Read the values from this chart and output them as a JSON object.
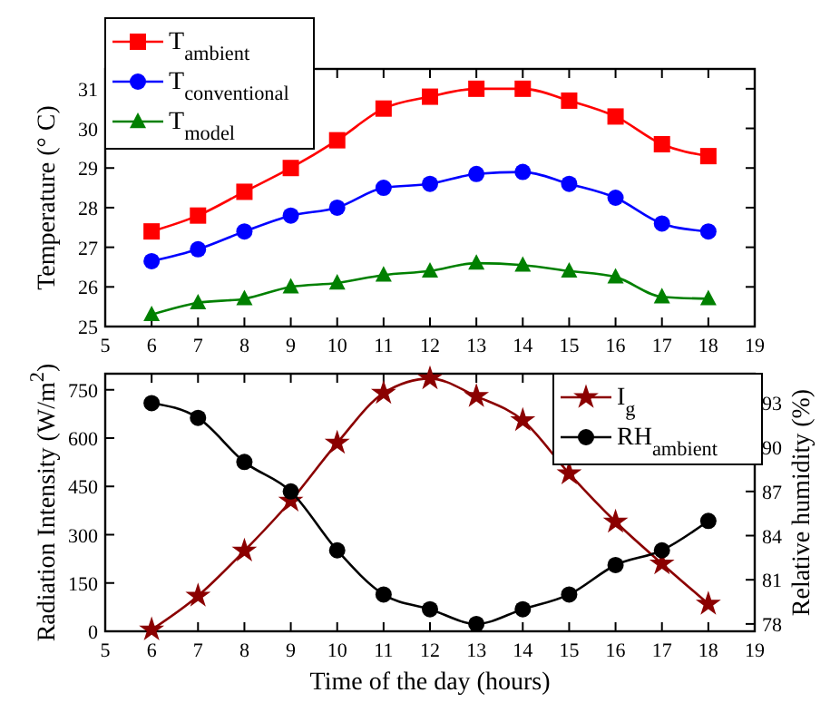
{
  "chart_data": [
    {
      "type": "line",
      "ylabel": "Temperature (° C)",
      "x": [
        6,
        7,
        8,
        9,
        10,
        11,
        12,
        13,
        14,
        15,
        16,
        17,
        18
      ],
      "xlim": [
        5,
        19
      ],
      "xticks": [
        5,
        6,
        7,
        8,
        9,
        10,
        11,
        12,
        13,
        14,
        15,
        16,
        17,
        18,
        19
      ],
      "ylim": [
        25,
        31.5
      ],
      "yticks": [
        25,
        26,
        27,
        28,
        29,
        30,
        31
      ],
      "legend": "top left",
      "grid": false,
      "series": [
        {
          "name": "T$_{ambient}$",
          "color": "#ff0000",
          "marker": "square",
          "values": [
            27.4,
            27.8,
            28.4,
            29.0,
            29.7,
            30.5,
            30.8,
            31.0,
            31.0,
            30.7,
            30.3,
            29.6,
            29.3
          ]
        },
        {
          "name": "T$_{conventional}$",
          "color": "#0000ff",
          "marker": "circle",
          "values": [
            26.65,
            26.95,
            27.4,
            27.8,
            28.0,
            28.5,
            28.6,
            28.85,
            28.9,
            28.6,
            28.25,
            27.6,
            27.4
          ]
        },
        {
          "name": "T$_{model}$",
          "color": "#008000",
          "marker": "triangle",
          "values": [
            25.3,
            25.6,
            25.7,
            26.0,
            26.1,
            26.3,
            26.4,
            26.6,
            26.55,
            26.4,
            26.25,
            25.75,
            25.7
          ]
        }
      ]
    },
    {
      "type": "line",
      "xlabel": "Time of the day (hours)",
      "ylabel": "Radiation Intensity (W/m$^{2}$)",
      "y2label": "Relative humidity (%)",
      "x": [
        6,
        7,
        8,
        9,
        10,
        11,
        12,
        13,
        14,
        15,
        16,
        17,
        18
      ],
      "xlim": [
        5,
        19
      ],
      "xticks": [
        5,
        6,
        7,
        8,
        9,
        10,
        11,
        12,
        13,
        14,
        15,
        16,
        17,
        18,
        19
      ],
      "ylim": [
        0,
        800
      ],
      "yticks": [
        0,
        150,
        300,
        450,
        600,
        750
      ],
      "y2lim": [
        77.5,
        95
      ],
      "y2ticks": [
        78,
        81,
        84,
        87,
        90,
        93
      ],
      "legend": "top right",
      "grid": false,
      "series": [
        {
          "name": "I$_{g}$",
          "color": "#8b0000",
          "marker": "star",
          "values": [
            5,
            110,
            250,
            405,
            585,
            740,
            785,
            730,
            655,
            490,
            340,
            210,
            85
          ]
        },
        {
          "name": "RH$_{ambient}$",
          "color": "#000000",
          "marker": "circle",
          "axis": "y2",
          "values": [
            93,
            92,
            89,
            87,
            83,
            80,
            79,
            78,
            79,
            80,
            82,
            83,
            85
          ]
        }
      ]
    }
  ]
}
